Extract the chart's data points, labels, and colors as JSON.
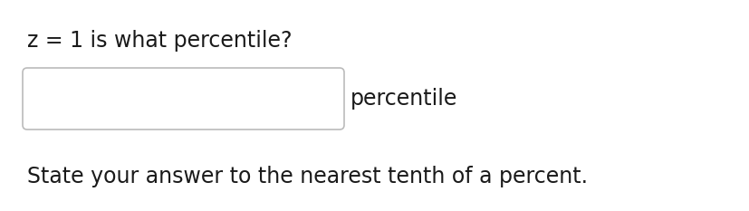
{
  "title": "z = 1 is what percentile?",
  "subtitle": "State your answer to the nearest tenth of a percent.",
  "label_after_box": "percentile",
  "background_color": "#ffffff",
  "title_fontsize": 17,
  "subtitle_fontsize": 17,
  "label_fontsize": 17,
  "box_facecolor": "#ffffff",
  "box_edgecolor": "#bbbbbb",
  "text_color": "#1a1a1a",
  "font_family": "DejaVu Sans",
  "font_weight": "normal"
}
